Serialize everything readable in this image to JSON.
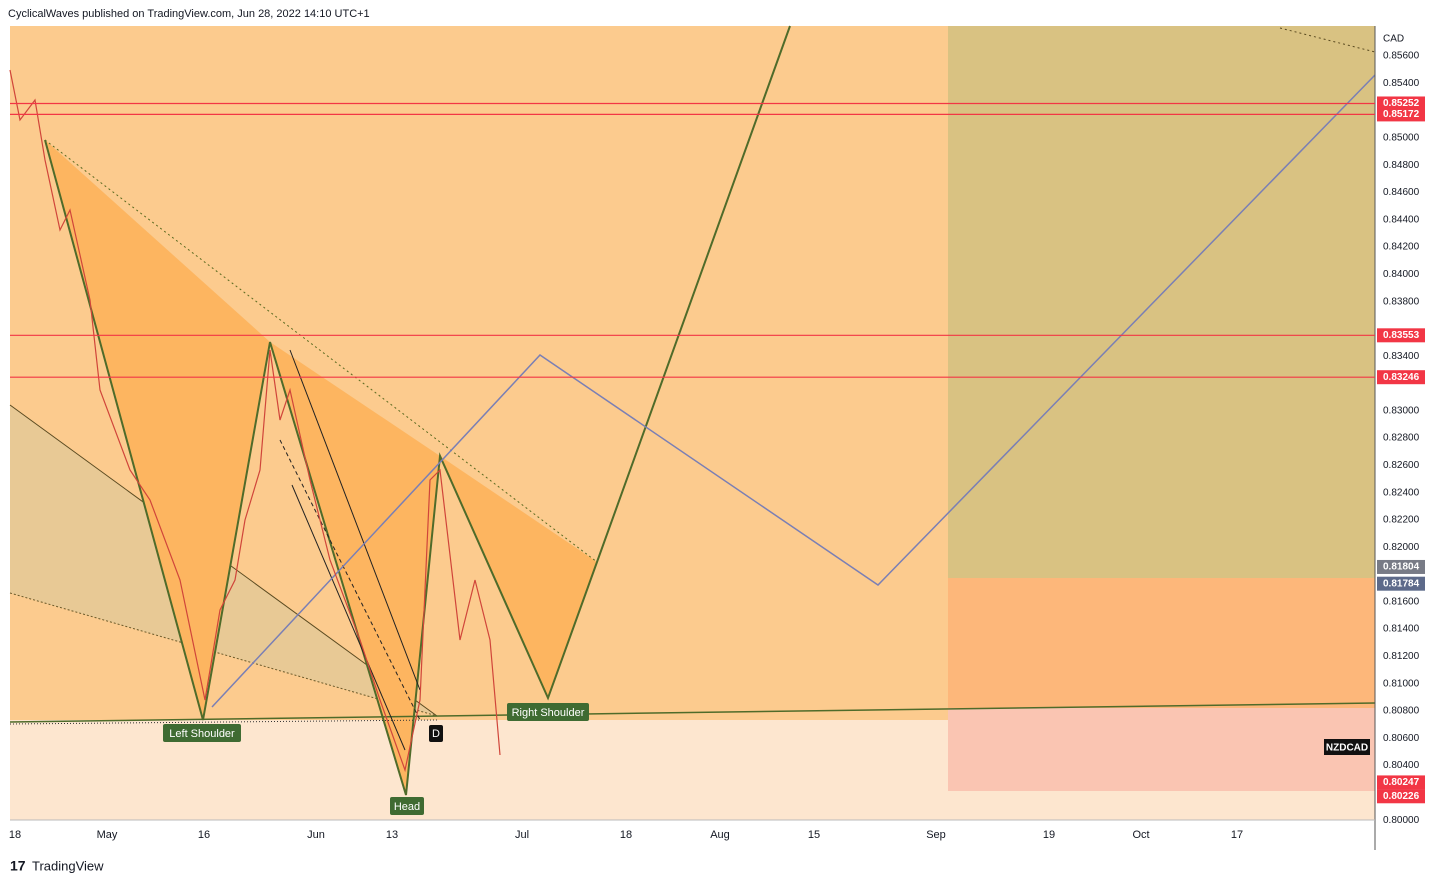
{
  "header": {
    "text": "CyclicalWaves published on TradingView.com, Jun 28, 2022 14:10 UTC+1"
  },
  "price_axis": {
    "currency": "CAD",
    "labels": [
      "0.85600",
      "0.85400",
      "0.85000",
      "0.84800",
      "0.84600",
      "0.84400",
      "0.84200",
      "0.84000",
      "0.83800",
      "0.83400",
      "0.83000",
      "0.82800",
      "0.82600",
      "0.82400",
      "0.82200",
      "0.82000",
      "0.81600",
      "0.81400",
      "0.81200",
      "0.81000",
      "0.80800",
      "0.80600",
      "0.80400",
      "0.80000"
    ],
    "badges": [
      {
        "text": "0.85252",
        "color": "#f23645"
      },
      {
        "text": "0.85172",
        "color": "#f23645"
      },
      {
        "text": "0.83553",
        "color": "#f23645"
      },
      {
        "text": "0.83246",
        "color": "#f23645"
      },
      {
        "text": "0.81804",
        "color": "#787b86"
      },
      {
        "text": "0.81784",
        "color": "#5d6a8a"
      },
      {
        "text": "0.80247",
        "color": "#f23645"
      },
      {
        "text": "0.80226",
        "color": "#f23645"
      }
    ],
    "symbol": "NZDCAD"
  },
  "time_axis": {
    "labels": [
      "18",
      "May",
      "16",
      "Jun",
      "13",
      "Jul",
      "18",
      "Aug",
      "15",
      "Sep",
      "19",
      "Oct",
      "17"
    ]
  },
  "pattern": {
    "left": "Left Shoulder",
    "head": "Head",
    "right": "Right Shoulder",
    "d": "D"
  },
  "footer": {
    "brand": "TradingView"
  }
}
